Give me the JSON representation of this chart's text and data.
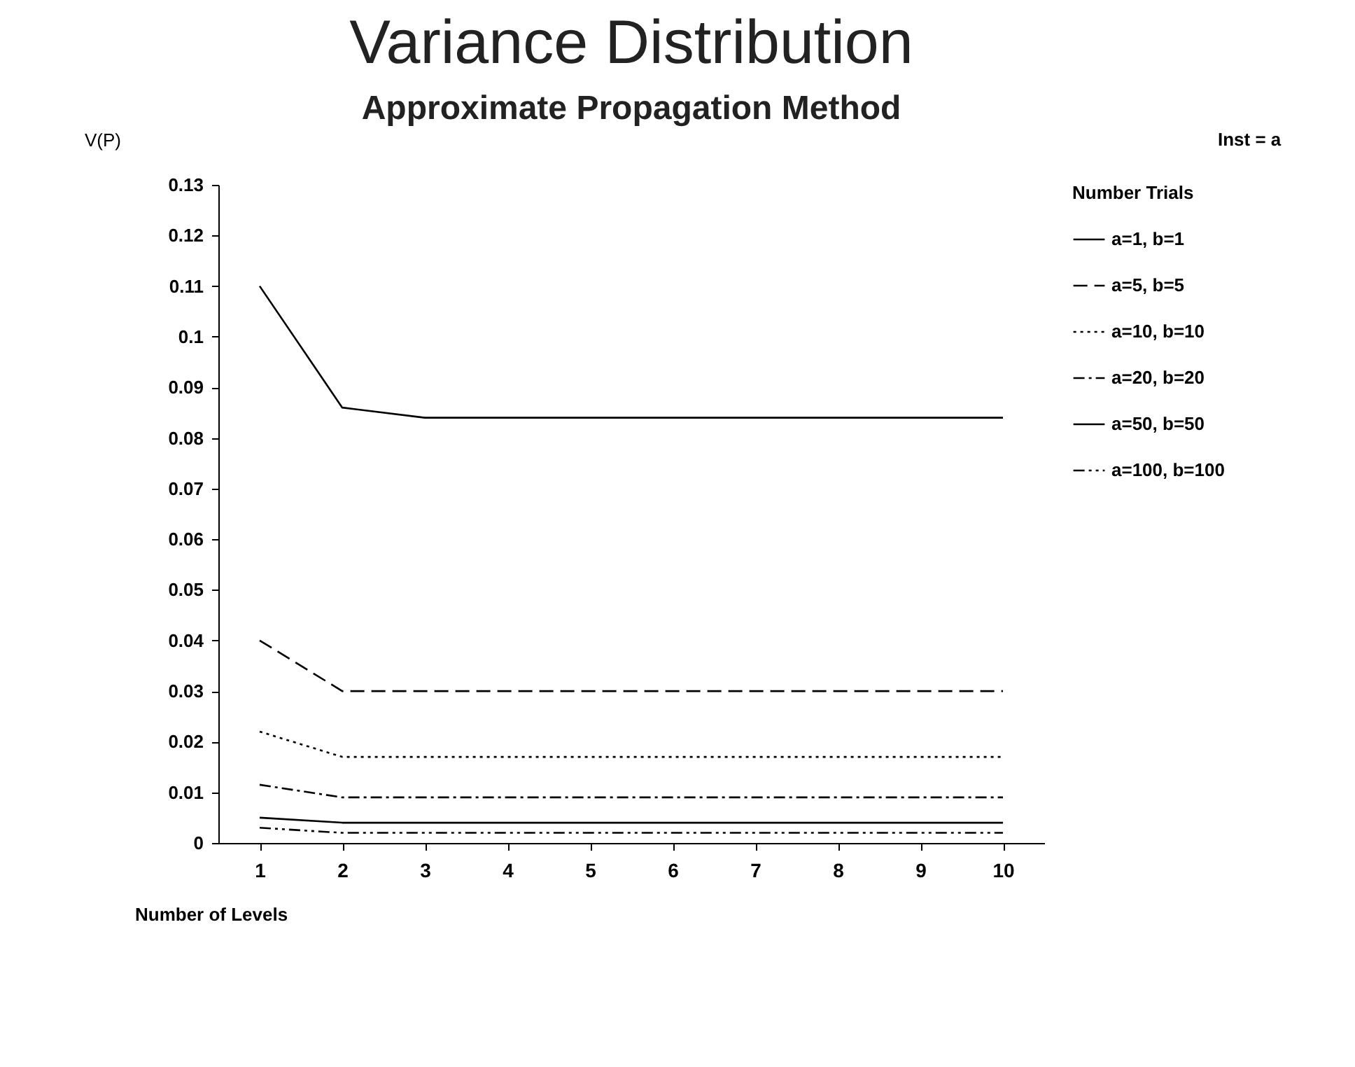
{
  "chart_data": {
    "type": "line",
    "title": "Variance Distribution",
    "subtitle": "Approximate Propagation Method",
    "xlabel": "Number of Levels",
    "ylabel": "V(P)",
    "legend_title": "Number Trials",
    "annotations": [
      "Inst = a"
    ],
    "x": [
      1,
      2,
      3,
      4,
      5,
      6,
      7,
      8,
      9,
      10
    ],
    "series": [
      {
        "name": "a=1, b=1",
        "color": "#000000",
        "line_style": "solid",
        "values": [
          0.11,
          0.086,
          0.084,
          0.084,
          0.084,
          0.084,
          0.084,
          0.084,
          0.084,
          0.084
        ]
      },
      {
        "name": "a=5, b=5",
        "color": "#000000",
        "line_style": "dashed",
        "values": [
          0.04,
          0.03,
          0.03,
          0.03,
          0.03,
          0.03,
          0.03,
          0.03,
          0.03,
          0.03
        ]
      },
      {
        "name": "a=10, b=10",
        "color": "#000000",
        "line_style": "dotted",
        "values": [
          0.022,
          0.017,
          0.017,
          0.017,
          0.017,
          0.017,
          0.017,
          0.017,
          0.017,
          0.017
        ]
      },
      {
        "name": "a=20, b=20",
        "color": "#000000",
        "line_style": "dashdot",
        "values": [
          0.0115,
          0.009,
          0.009,
          0.009,
          0.009,
          0.009,
          0.009,
          0.009,
          0.009,
          0.009
        ]
      },
      {
        "name": "a=50, b=50",
        "color": "#000000",
        "line_style": "solid",
        "values": [
          0.005,
          0.004,
          0.004,
          0.004,
          0.004,
          0.004,
          0.004,
          0.004,
          0.004,
          0.004
        ]
      },
      {
        "name": "a=100, b=100",
        "color": "#000000",
        "line_style": "dashdotdot",
        "values": [
          0.003,
          0.002,
          0.002,
          0.002,
          0.002,
          0.002,
          0.002,
          0.002,
          0.002,
          0.002
        ]
      }
    ],
    "xlim": [
      0.5,
      10.5
    ],
    "xticks": [
      1,
      2,
      3,
      4,
      5,
      6,
      7,
      8,
      9,
      10
    ],
    "ylim": [
      0,
      0.13
    ],
    "yticks": [
      0,
      0.01,
      0.02,
      0.03,
      0.04,
      0.05,
      0.06,
      0.07,
      0.08,
      0.09,
      0.1,
      0.11,
      0.12,
      0.13
    ],
    "grid": false,
    "legend": "right",
    "marker": "none"
  }
}
